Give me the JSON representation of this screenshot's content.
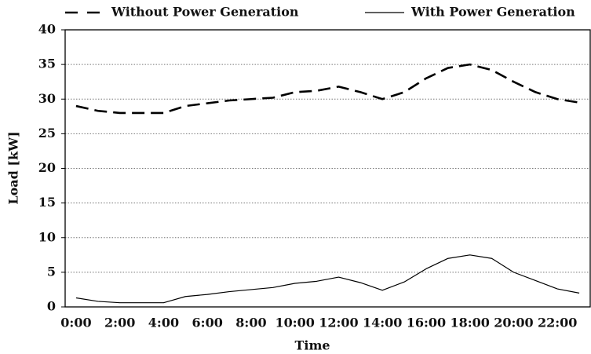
{
  "chart_data": {
    "type": "line",
    "x_label": "Time",
    "y_label": "Load [kW]",
    "categories": [
      "0:00",
      null,
      "2:00",
      null,
      "4:00",
      null,
      "6:00",
      null,
      "8:00",
      null,
      "10:00",
      null,
      "12:00",
      null,
      "14:00",
      null,
      "16:00",
      null,
      "18:00",
      null,
      "20:00",
      null,
      "22:00",
      null
    ],
    "series": [
      {
        "name": "Without Power Generation",
        "color": "#000000",
        "dashed": true,
        "values": [
          29,
          28.3,
          28,
          28,
          28,
          29,
          29.4,
          29.8,
          30,
          30.2,
          31,
          31.2,
          31.8,
          31,
          30,
          31,
          33,
          34.5,
          35,
          34.2,
          32.5,
          31,
          30,
          29.5
        ]
      },
      {
        "name": "With Power Generation",
        "color": "#000000",
        "dashed": false,
        "values": [
          1.3,
          0.8,
          0.6,
          0.6,
          0.6,
          1.5,
          1.8,
          2.2,
          2.5,
          2.8,
          3.4,
          3.7,
          4.3,
          3.5,
          2.4,
          3.6,
          5.5,
          7,
          7.5,
          7,
          5,
          3.8,
          2.6,
          2
        ]
      }
    ],
    "ylim": [
      0,
      40
    ],
    "yticks": [
      0,
      5,
      10,
      15,
      20,
      25,
      30,
      35,
      40
    ],
    "grid": true
  }
}
